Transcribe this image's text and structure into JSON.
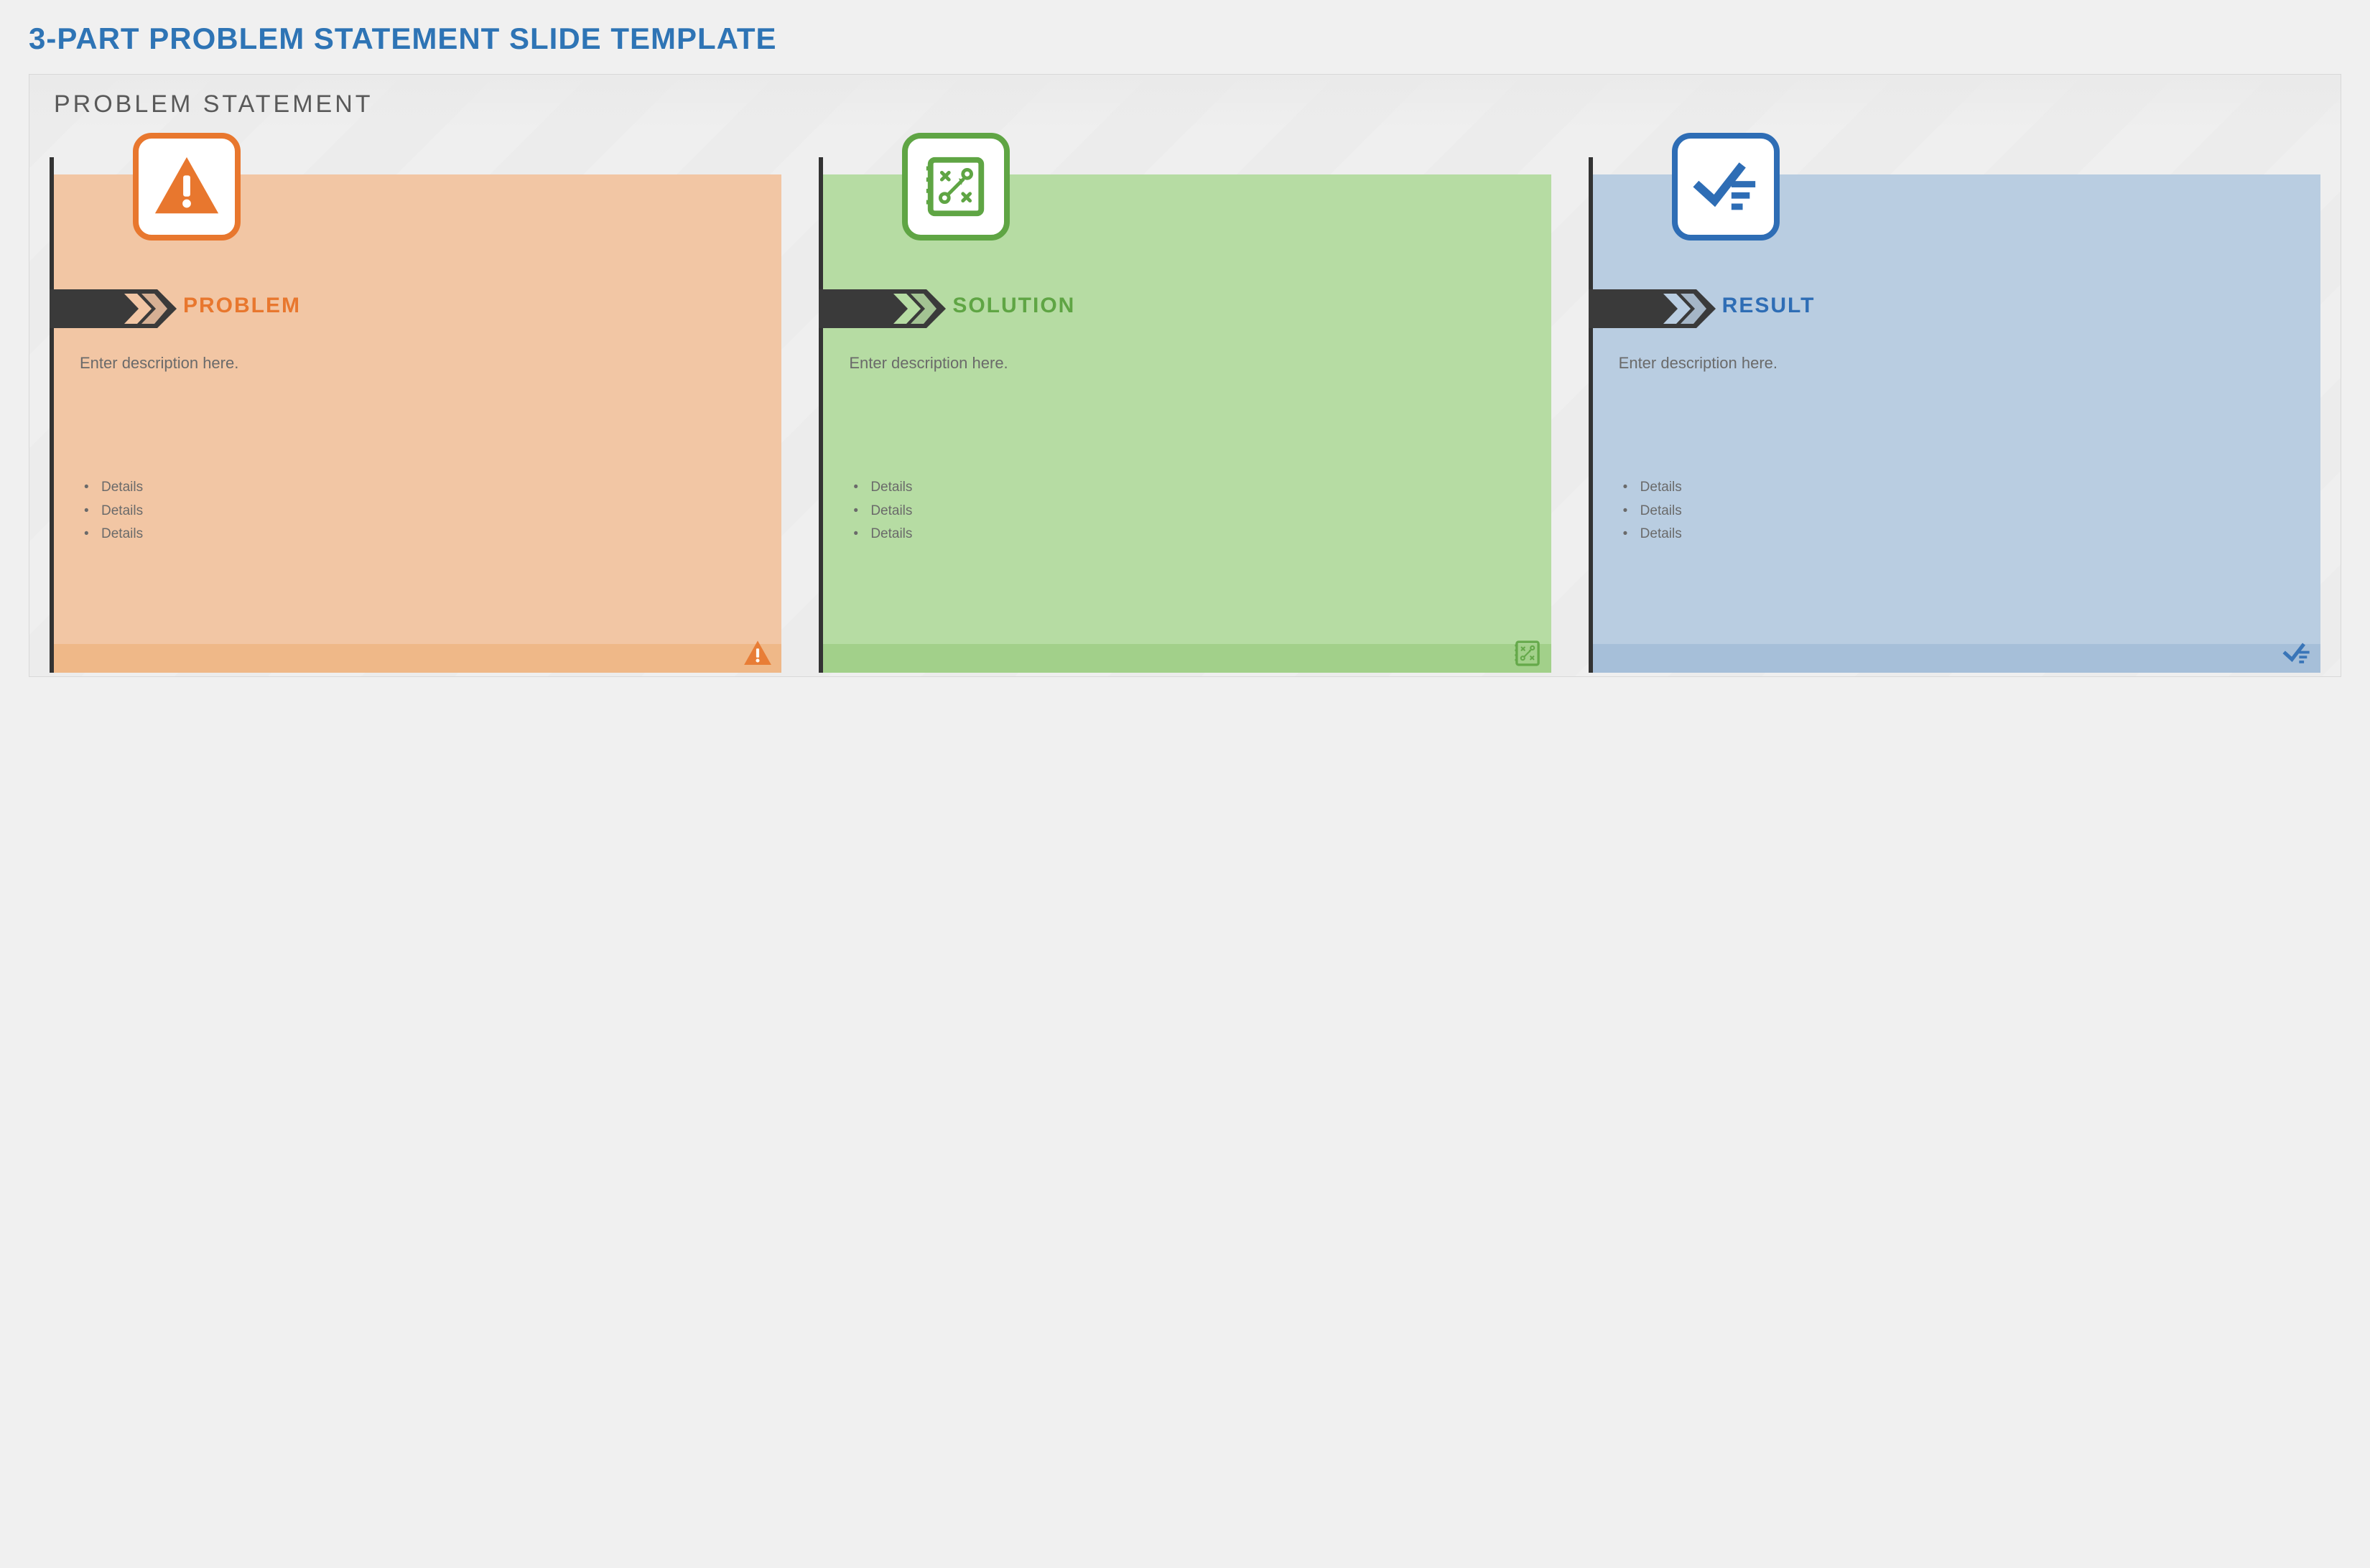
{
  "page": {
    "title": "3-PART PROBLEM STATEMENT SLIDE TEMPLATE",
    "title_color": "#2e74b5",
    "title_fontsize": 42,
    "background": "#f0f0f0"
  },
  "slide": {
    "header": "PROBLEM STATEMENT",
    "header_color": "#595959",
    "header_fontsize": 34,
    "background": "#efefef",
    "arrow_band_color": "#3a3a3a"
  },
  "cards": [
    {
      "id": "problem",
      "title": "PROBLEM",
      "title_color": "#e8772e",
      "body_bg": "#f2c6a4",
      "footer_bg": "#efb888",
      "badge_border": "#e8772e",
      "icon": "warning",
      "icon_color": "#e8772e",
      "description": "Enter description here.",
      "details": [
        "Details",
        "Details",
        "Details"
      ]
    },
    {
      "id": "solution",
      "title": "SOLUTION",
      "title_color": "#5fa544",
      "body_bg": "#b6dca3",
      "footer_bg": "#a2d08a",
      "badge_border": "#5fa544",
      "icon": "strategy",
      "icon_color": "#5fa544",
      "description": "Enter description here.",
      "details": [
        "Details",
        "Details",
        "Details"
      ]
    },
    {
      "id": "result",
      "title": "RESULT",
      "title_color": "#2e6db5",
      "body_bg": "#b9cde1",
      "footer_bg": "#a6bfd9",
      "badge_border": "#2e6db5",
      "icon": "check",
      "icon_color": "#2e6db5",
      "description": "Enter description here.",
      "details": [
        "Details",
        "Details",
        "Details"
      ]
    }
  ]
}
